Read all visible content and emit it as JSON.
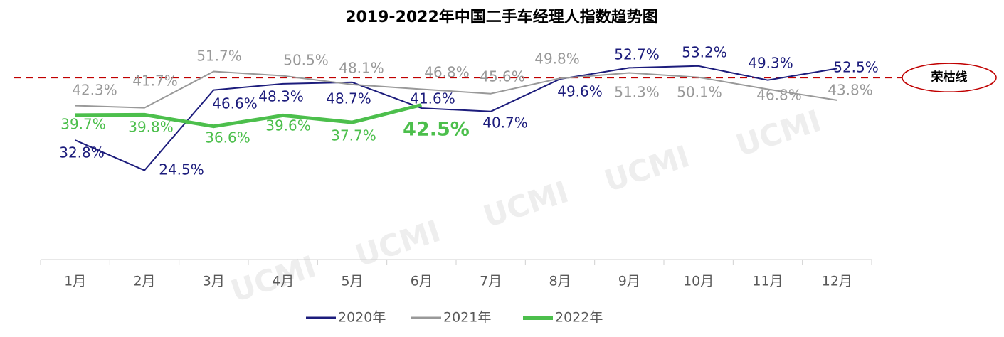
{
  "chart_data": {
    "type": "line",
    "title": "2019-2022年中国二手车经理人指数趋势图",
    "categories": [
      "1月",
      "2月",
      "3月",
      "4月",
      "5月",
      "6月",
      "7月",
      "8月",
      "9月",
      "10月",
      "11月",
      "12月"
    ],
    "series": [
      {
        "name": "2020年",
        "color": "#1c1c7c",
        "values": [
          32.8,
          24.5,
          46.6,
          48.3,
          48.7,
          41.6,
          40.7,
          49.6,
          52.7,
          53.2,
          49.3,
          52.5
        ],
        "value_labels": [
          "32.8%",
          "24.5%",
          "46.6%",
          "48.3%",
          "48.7%",
          "41.6%",
          "40.7%",
          "49.6%",
          "52.7%",
          "53.2%",
          "49.3%",
          "52.5%"
        ]
      },
      {
        "name": "2021年",
        "color": "#999999",
        "values": [
          42.3,
          41.7,
          51.7,
          50.5,
          48.1,
          46.8,
          45.6,
          49.8,
          51.3,
          50.1,
          46.8,
          43.8
        ],
        "value_labels": [
          "42.3%",
          "41.7%",
          "51.7%",
          "50.5%",
          "48.1%",
          "46.8%",
          "45.6%",
          "49.8%",
          "51.3%",
          "50.1%",
          "46.8%",
          "43.8%"
        ]
      },
      {
        "name": "2022年",
        "color": "#4cbf4c",
        "values": [
          39.7,
          39.8,
          36.6,
          39.6,
          37.7,
          42.5,
          null,
          null,
          null,
          null,
          null,
          null
        ],
        "value_labels": [
          "39.7%",
          "39.8%",
          "36.6%",
          "39.6%",
          "37.7%",
          "42.5%",
          null,
          null,
          null,
          null,
          null,
          null
        ]
      }
    ],
    "ylim": [
      0,
      60
    ],
    "reference_line": {
      "value": 50,
      "label": "荣枯线",
      "color": "#c00000"
    },
    "watermark": "UCMI",
    "legend": "bottom"
  }
}
